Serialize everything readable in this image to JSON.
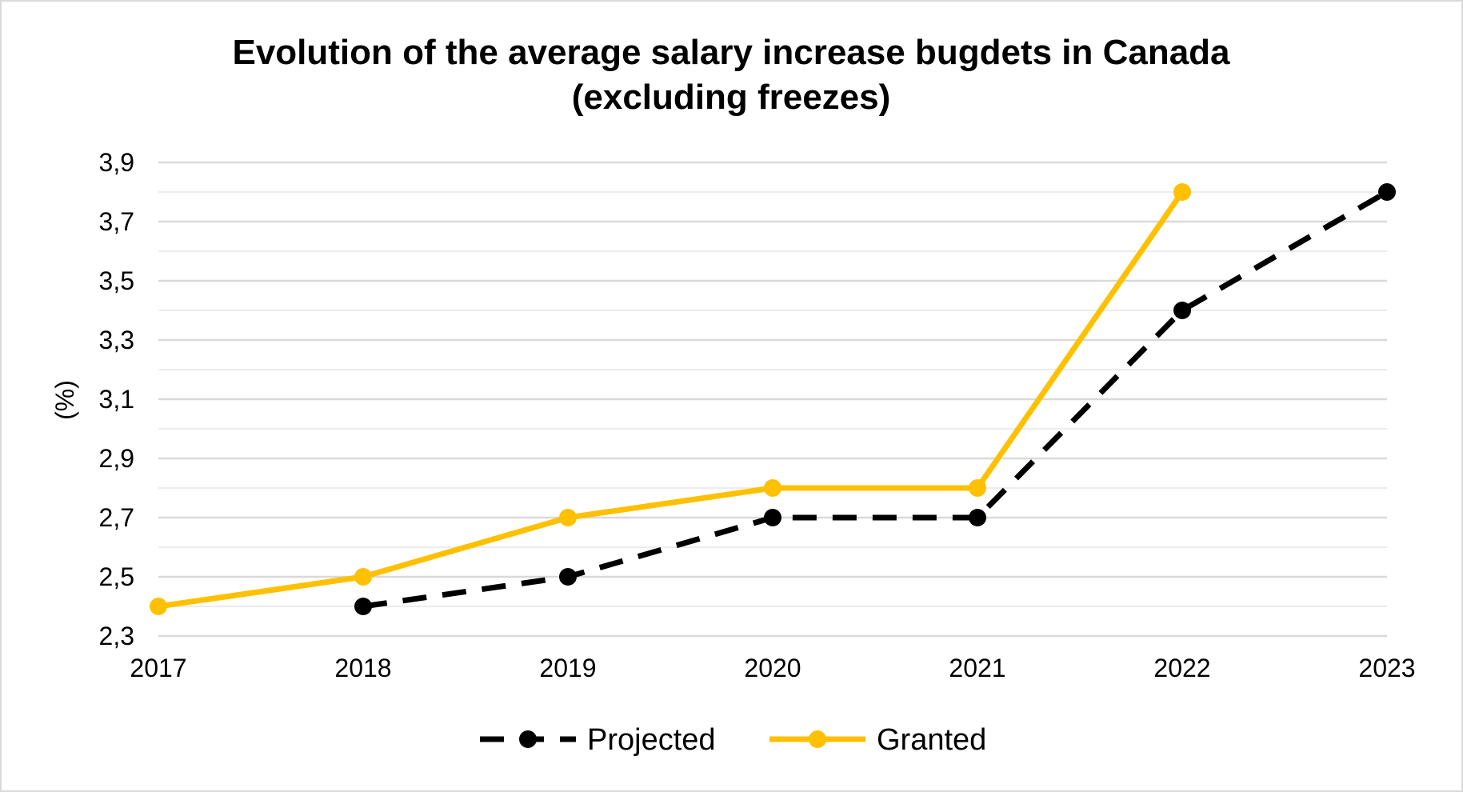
{
  "chart_data": {
    "type": "line",
    "title": [
      "Evolution of the average salary increase bugdets in Canada",
      "(excluding freezes)"
    ],
    "ylabel": "(%)",
    "xlabel": "",
    "categories": [
      "2017",
      "2018",
      "2019",
      "2020",
      "2021",
      "2022",
      "2023"
    ],
    "ylim": [
      2.3,
      3.9
    ],
    "yticks": [
      "2,3",
      "2,5",
      "2,7",
      "2,9",
      "3,1",
      "3,3",
      "3,5",
      "3,7",
      "3,9"
    ],
    "minor_grid_step": 0.1,
    "grid": true,
    "legend_position": "bottom",
    "series": [
      {
        "name": "Projected",
        "color": "#000000",
        "dash": "dashed",
        "values": [
          null,
          2.4,
          2.5,
          2.7,
          2.7,
          3.4,
          3.8
        ]
      },
      {
        "name": "Granted",
        "color": "#FFC000",
        "dash": "solid",
        "values": [
          2.4,
          2.5,
          2.7,
          2.8,
          2.8,
          3.8,
          null
        ]
      }
    ]
  }
}
